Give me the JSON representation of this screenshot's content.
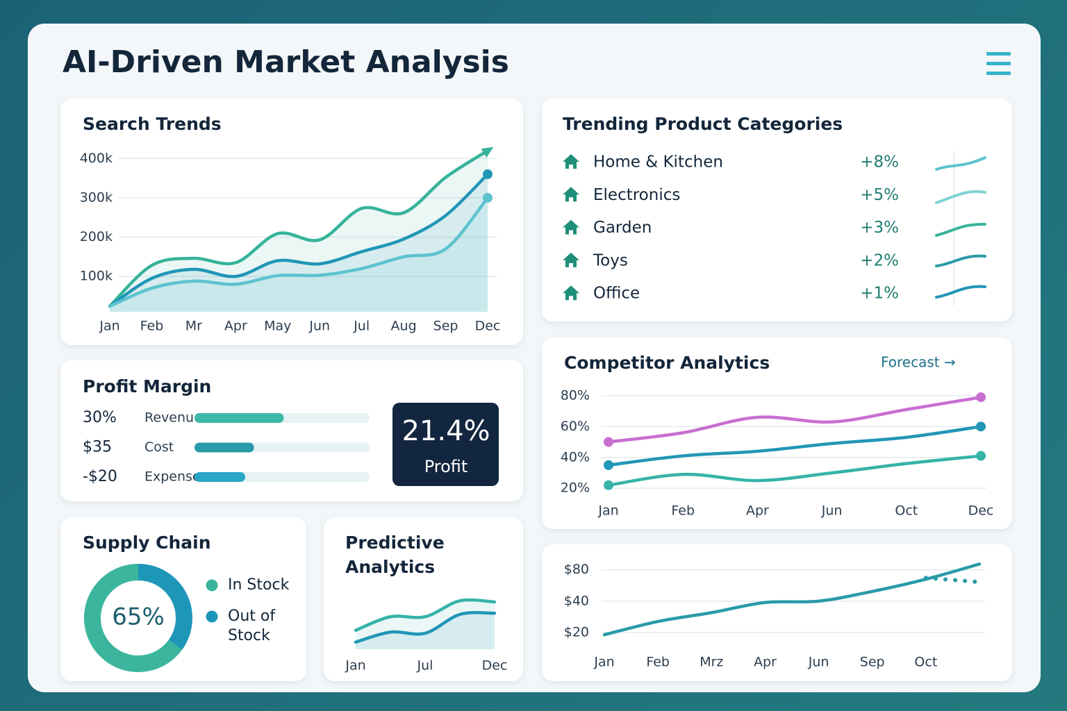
{
  "title": "AI-Driven Market Analysis",
  "chart_data": [
    {
      "type": "line",
      "title": "Search Trends",
      "categories": [
        "Jan",
        "Feb",
        "Mr",
        "Apr",
        "May",
        "Jun",
        "Jul",
        "Aug",
        "Sep",
        "Dec"
      ],
      "series": [
        {
          "color": "#36b39a",
          "arrow": true,
          "values": [
            24000,
            128000,
            146000,
            135000,
            209000,
            193000,
            273000,
            262000,
            352000,
            420000
          ]
        },
        {
          "color": "#2196b6",
          "values": [
            24000,
            95000,
            118000,
            100000,
            140000,
            132000,
            163000,
            195000,
            255000,
            360000
          ]
        },
        {
          "color": "#5cc3cf",
          "values": [
            24000,
            70000,
            88000,
            80000,
            102000,
            103000,
            120000,
            150000,
            170000,
            300000
          ]
        }
      ],
      "ylim": [
        10000,
        450000
      ],
      "yticks": [
        {
          "value": 100000,
          "label": "100k"
        },
        {
          "value": 200000,
          "label": "200k"
        },
        {
          "value": 300000,
          "label": "300k"
        },
        {
          "value": 400000,
          "label": "400k"
        }
      ],
      "grid": true,
      "area": true,
      "markers": "last"
    },
    {
      "type": "line",
      "title": "Competitor Analytics",
      "link": "Forecast →",
      "categories": [
        "Jan",
        "Feb",
        "Apr",
        "Jun",
        "Oct",
        "Dec"
      ],
      "series": [
        {
          "color": "#c86fd0",
          "values": [
            50,
            56,
            66,
            63,
            71,
            79
          ]
        },
        {
          "color": "#2196b6",
          "values": [
            35,
            41,
            44,
            49,
            53,
            60
          ]
        },
        {
          "color": "#36b3a8",
          "values": [
            22,
            29,
            25,
            30,
            36,
            41
          ]
        }
      ],
      "ylim": [
        12,
        84
      ],
      "yticks": [
        {
          "value": 20,
          "label": "20%"
        },
        {
          "value": 40,
          "label": "40%"
        },
        {
          "value": 60,
          "label": "60%"
        },
        {
          "value": 80,
          "label": "80%"
        }
      ],
      "grid": true,
      "markers": "both"
    },
    {
      "type": "line",
      "categories": [
        "Jan",
        "Feb",
        "Mrz",
        "Apr",
        "Jun",
        "Sep",
        "Oct",
        null
      ],
      "series": [
        {
          "color": "#2a9aa8",
          "values": [
            19,
            25.5,
            31,
            38.8,
            40,
            49.6,
            65,
            91
          ]
        },
        {
          "color": "#2a9aa8",
          "dash": true,
          "values": [
            null,
            null,
            null,
            null,
            null,
            null,
            67,
            61
          ]
        }
      ],
      "ylim": [
        14,
        110
      ],
      "log_scale": true,
      "yticks": [
        {
          "value": 20,
          "label": "$20"
        },
        {
          "value": 40,
          "label": "$40"
        },
        {
          "value": 80,
          "label": "$80"
        }
      ],
      "grid": true
    },
    {
      "type": "line",
      "title": "Predictive Analytics",
      "categories": [
        "Jan",
        null,
        "Jul",
        null,
        "Dec"
      ],
      "series": [
        {
          "color": "#36b3a8",
          "values": [
            32,
            55,
            55,
            82,
            80
          ]
        },
        {
          "color": "#2196b6",
          "values": [
            12,
            29,
            27,
            59,
            61
          ]
        }
      ],
      "ylim": [
        0,
        100
      ],
      "area": true
    },
    {
      "type": "pie",
      "title": "Supply Chain",
      "donut": true,
      "categories": [
        "In Stock",
        "Out of Stock"
      ],
      "values": [
        65,
        35
      ],
      "value_labels": [
        "65%",
        null
      ],
      "colors": [
        "#3bb59d",
        "#1e96b8"
      ]
    }
  ],
  "trending": {
    "title": "Trending Product Categories",
    "items": [
      {
        "name": "Home & Kitchen",
        "change": "+8%"
      },
      {
        "name": "Electronics",
        "change": "+5%"
      },
      {
        "name": "Garden",
        "change": "+3%"
      },
      {
        "name": "Toys",
        "change": "+2%"
      },
      {
        "name": "Office",
        "change": "+1%"
      }
    ]
  },
  "profit_margin": {
    "title": "Profit Margin",
    "rows": [
      {
        "amount": "30%",
        "label": "Revenue",
        "fill": 51
      },
      {
        "amount": "$35",
        "label": "Cost",
        "fill": 34
      },
      {
        "amount": "-$20",
        "label": "Expense",
        "fill": 29
      }
    ],
    "kpi": {
      "value": "21.4%",
      "label": "Profit"
    }
  }
}
